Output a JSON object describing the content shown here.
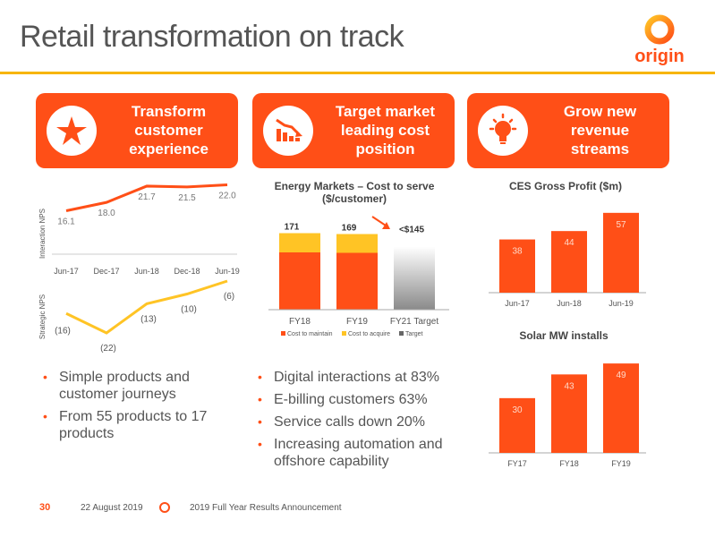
{
  "page": {
    "title": "Retail transformation on track",
    "logo_text": "origin"
  },
  "tiles": [
    {
      "label_lines": [
        "Transform",
        "customer",
        "experience"
      ],
      "icon": "star-icon"
    },
    {
      "label_lines": [
        "Target market",
        "leading cost",
        "position"
      ],
      "icon": "cost-chart-icon"
    },
    {
      "label_lines": [
        "Grow new",
        "revenue",
        "streams"
      ],
      "icon": "lightbulb-icon"
    }
  ],
  "charts": {
    "nps": {
      "interaction_label": "Interaction NPS",
      "strategic_label": "Strategic NPS",
      "x_ticks": [
        "Jun-17",
        "Dec-17",
        "Jun-18",
        "Dec-18",
        "Jun-19"
      ],
      "interaction_labels": [
        "16.1",
        "18.0",
        "21.7",
        "21.5",
        "22.0"
      ],
      "strategic_labels": [
        "(16)",
        "(22)",
        "(13)",
        "(10)",
        "(6)"
      ]
    },
    "cost": {
      "title_line1": "Energy Markets – Cost to serve",
      "title_line2": "($/customer)",
      "categories": [
        "FY18",
        "FY19",
        "FY21 Target"
      ],
      "totals": [
        "171",
        "169",
        "<$145"
      ],
      "legend": [
        "Cost to maintain",
        "Cost to acquire",
        "Target"
      ]
    },
    "ces": {
      "title": "CES Gross Profit ($m)",
      "categories": [
        "Jun-17",
        "Jun-18",
        "Jun-19"
      ],
      "labels": [
        "38",
        "44",
        "57"
      ]
    },
    "solar": {
      "title": "Solar MW installs",
      "categories": [
        "FY17",
        "FY18",
        "FY19"
      ],
      "labels": [
        "30",
        "43",
        "49"
      ]
    }
  },
  "bullets_left": [
    "Simple products and customer journeys",
    "From 55 products to 17 products"
  ],
  "bullets_mid": [
    "Digital interactions at 83%",
    "E-billing customers 63%",
    "Service calls down 20%",
    "Increasing automation and offshore capability"
  ],
  "footer": {
    "page_number": "30",
    "date": "22 August 2019",
    "event": "2019 Full Year Results Announcement"
  },
  "colors": {
    "accent": "#ff4f17",
    "gold": "#ffc425",
    "rule": "#f7b500",
    "text": "#555555"
  },
  "chart_data": [
    {
      "type": "line",
      "x": [
        "Jun-17",
        "Dec-17",
        "Jun-18",
        "Dec-18",
        "Jun-19"
      ],
      "series": [
        {
          "name": "Interaction NPS",
          "values": [
            16.1,
            18.0,
            21.7,
            21.5,
            22.0
          ]
        },
        {
          "name": "Strategic NPS",
          "values": [
            -16,
            -22,
            -13,
            -10,
            -6
          ]
        }
      ]
    },
    {
      "type": "bar",
      "title": "Energy Markets – Cost to serve ($/customer)",
      "categories": [
        "FY18",
        "FY19",
        "FY21 Target"
      ],
      "series": [
        {
          "name": "Cost to maintain",
          "values": [
            128,
            127,
            null
          ]
        },
        {
          "name": "Cost to acquire",
          "values": [
            43,
            42,
            null
          ]
        },
        {
          "name": "Target",
          "values": [
            null,
            null,
            145
          ]
        }
      ],
      "totals": [
        171,
        169,
        145
      ]
    },
    {
      "type": "bar",
      "title": "CES Gross Profit ($m)",
      "categories": [
        "Jun-17",
        "Jun-18",
        "Jun-19"
      ],
      "values": [
        38,
        44,
        57
      ]
    },
    {
      "type": "bar",
      "title": "Solar MW installs",
      "categories": [
        "FY17",
        "FY18",
        "FY19"
      ],
      "values": [
        30,
        43,
        49
      ]
    }
  ]
}
